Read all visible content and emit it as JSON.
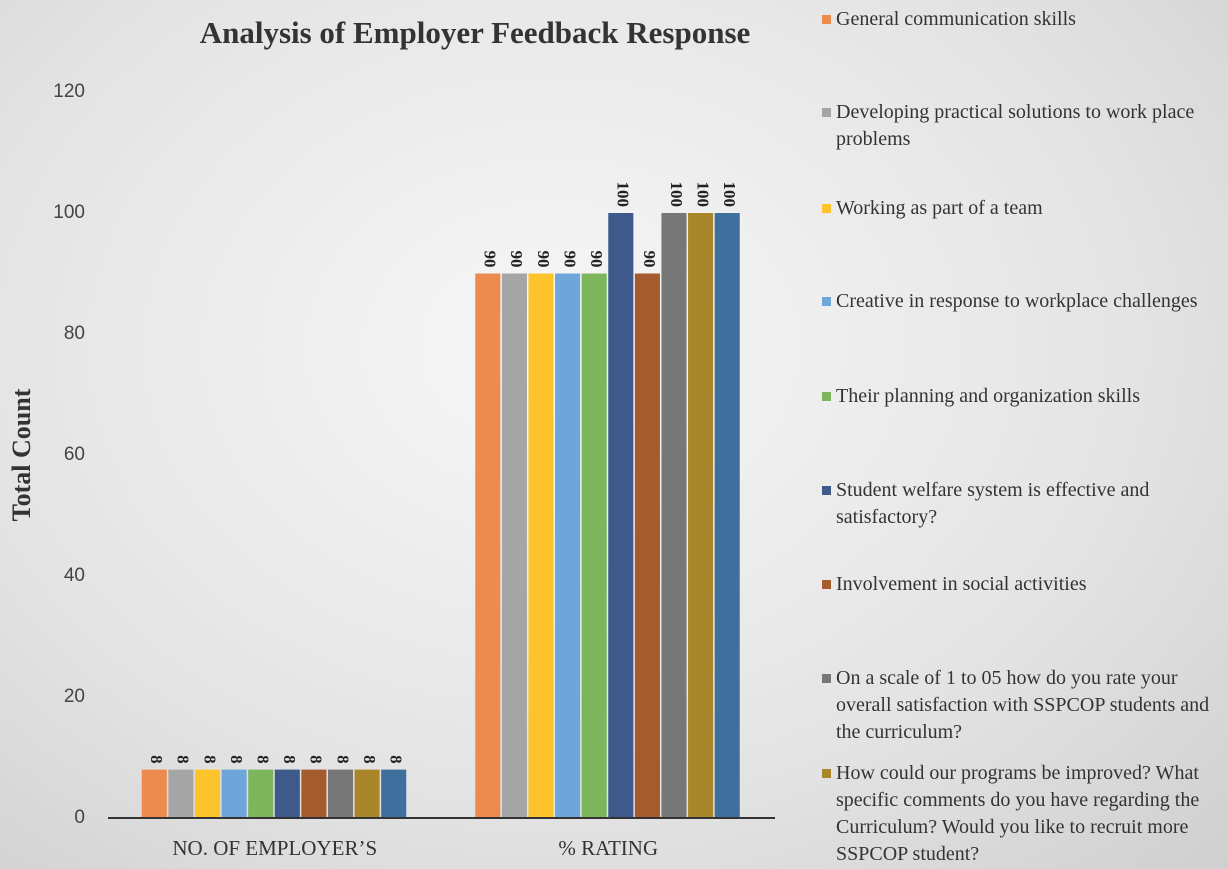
{
  "chart_data": {
    "type": "bar",
    "title": "Analysis of Employer Feedback Response",
    "y_label": "Total Count",
    "categories": [
      "NO. OF EMPLOYER’S",
      "% RATING"
    ],
    "series": [
      {
        "name": "General communication skills",
        "color": "#ed8b4e",
        "values": [
          8,
          90
        ]
      },
      {
        "name": "Developing practical solutions to work place problems",
        "color": "#a5a5a5",
        "values": [
          8,
          90
        ]
      },
      {
        "name": "Working as part of a team",
        "color": "#fcc42a",
        "values": [
          8,
          90
        ]
      },
      {
        "name": "Creative in response to workplace challenges",
        "color": "#6fa6d9",
        "values": [
          8,
          90
        ]
      },
      {
        "name": "Their planning and organization skills",
        "color": "#7db55c",
        "values": [
          8,
          90
        ]
      },
      {
        "name": "Student welfare system is effective and satisfactory?",
        "color": "#3d5a8b",
        "values": [
          8,
          100
        ]
      },
      {
        "name": "Involvement in social activities",
        "color": "#a55b2d",
        "values": [
          8,
          90
        ]
      },
      {
        "name": "On a scale of 1 to 05 how do you rate your overall satisfaction with SSPCOP students and the curriculum?",
        "color": "#777777",
        "values": [
          8,
          100
        ]
      },
      {
        "name": "How could our programs be improved? What specific comments do you have regarding the Curriculum?  Would you like to recruit more SSPCOP student?",
        "color": "#a9862a",
        "values": [
          8,
          100
        ]
      },
      {
        "color": "#3f6f9c",
        "values": [
          8,
          100
        ]
      }
    ],
    "ylim": [
      0,
      120
    ],
    "yticks": [
      0,
      20,
      40,
      60,
      80,
      100,
      120
    ]
  }
}
